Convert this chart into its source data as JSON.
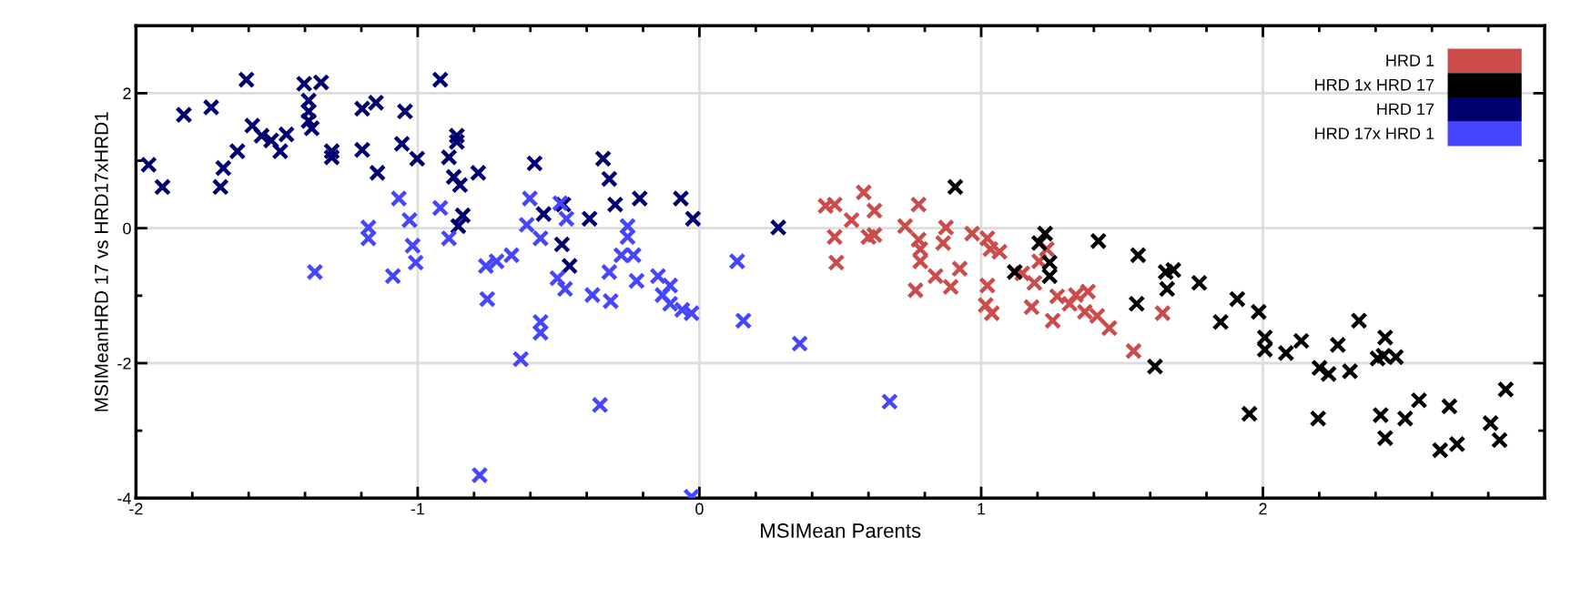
{
  "chart_data": {
    "type": "scatter",
    "xlabel": "MSIMean Parents",
    "ylabel": "MSIMeanHRD 17 vs HRD17xHRD1",
    "xlim": [
      -2,
      3
    ],
    "ylim": [
      -4,
      3
    ],
    "xticks": [
      -2,
      {
        "value": -1.8,
        "label": null
      },
      {
        "value": -1.6,
        "label": null
      },
      {
        "value": -1.4,
        "label": null
      },
      {
        "value": -1.2,
        "label": null
      },
      -1,
      {
        "value": -0.8,
        "label": null
      },
      {
        "value": -0.6,
        "label": null
      },
      {
        "value": -0.4,
        "label": null
      },
      {
        "value": -0.2,
        "label": null
      },
      0,
      {
        "value": 0.2,
        "label": null
      },
      {
        "value": 0.4,
        "label": null
      },
      {
        "value": 0.6,
        "label": null
      },
      {
        "value": 0.8,
        "label": null
      },
      1,
      {
        "value": 1.2,
        "label": null
      },
      {
        "value": 1.4,
        "label": null
      },
      {
        "value": 1.6,
        "label": null
      },
      {
        "value": 1.8,
        "label": null
      },
      2,
      {
        "value": 2.2,
        "label": null
      },
      {
        "value": 2.4,
        "label": null
      },
      {
        "value": 2.6,
        "label": null
      },
      {
        "value": 2.8,
        "label": null
      }
    ],
    "yticks": [
      -4,
      {
        "value": -3,
        "label": null
      },
      -2,
      {
        "value": -1,
        "label": null
      },
      0,
      {
        "value": 1,
        "label": null
      },
      2
    ],
    "grid": true,
    "legend": "top right",
    "marker": "cross",
    "series": [
      {
        "name": "HRD 1",
        "color": "#cc4b4b",
        "x": [
          0.448,
          0.48,
          0.54,
          0.583,
          0.48,
          0.486,
          0.6,
          0.621,
          0.621,
          0.778,
          0.73,
          0.778,
          0.784,
          0.784,
          0.875,
          0.865,
          0.767,
          0.838,
          0.892,
          0.924,
          0.968,
          1.022,
          1.033,
          1.065,
          1.022,
          1.016,
          1.038,
          1.146,
          1.189,
          1.233,
          1.206,
          1.179,
          1.254,
          1.27,
          1.336,
          1.379,
          1.368,
          1.412,
          1.455,
          1.541,
          1.644,
          1.314
        ],
        "values": [
          0.33,
          0.35,
          0.12,
          0.53,
          -0.13,
          -0.51,
          -0.13,
          0.26,
          -0.1,
          0.35,
          0.03,
          -0.17,
          -0.31,
          -0.49,
          0.01,
          -0.22,
          -0.92,
          -0.71,
          -0.87,
          -0.6,
          -0.08,
          -0.15,
          -0.31,
          -0.35,
          -0.85,
          -1.14,
          -1.26,
          -0.67,
          -0.81,
          -0.31,
          -0.49,
          -1.17,
          -1.37,
          -1.01,
          -0.99,
          -0.94,
          -1.24,
          -1.3,
          -1.48,
          -1.82,
          -1.26,
          -1.12
        ]
      },
      {
        "name": "HRD 1x HRD 17",
        "color": "#000000",
        "x": [
          0.908,
          1.227,
          1.206,
          1.119,
          1.243,
          1.243,
          1.416,
          1.557,
          1.552,
          1.655,
          1.682,
          1.66,
          1.774,
          1.617,
          1.85,
          1.909,
          1.985,
          2.007,
          2.007,
          2.082,
          2.136,
          1.952,
          2.201,
          2.233,
          2.266,
          2.309,
          2.341,
          2.434,
          2.428,
          2.472,
          2.407,
          2.196,
          2.418,
          2.434,
          2.505,
          2.554,
          2.662,
          2.629,
          2.689,
          2.808,
          2.84,
          2.862
        ],
        "values": [
          0.61,
          -0.08,
          -0.22,
          -0.65,
          -0.51,
          -0.71,
          -0.19,
          -0.4,
          -1.12,
          -0.65,
          -0.62,
          -0.9,
          -0.81,
          -2.05,
          -1.39,
          -1.05,
          -1.24,
          -1.62,
          -1.8,
          -1.85,
          -1.67,
          -2.75,
          -2.07,
          -2.16,
          -1.73,
          -2.12,
          -1.37,
          -1.62,
          -1.89,
          -1.91,
          -1.93,
          -2.82,
          -2.77,
          -3.11,
          -2.82,
          -2.55,
          -2.64,
          -3.29,
          -3.2,
          -2.89,
          -3.14,
          -2.39
        ]
      },
      {
        "name": "HRD 17",
        "color": "#000070",
        "x": [
          -1.955,
          -1.906,
          -1.83,
          -1.733,
          -1.608,
          -1.587,
          -1.64,
          -1.69,
          -1.7,
          -1.554,
          -1.52,
          -1.488,
          -1.466,
          -1.403,
          -1.343,
          -1.387,
          -1.387,
          -1.387,
          -1.376,
          -1.305,
          -1.305,
          -1.197,
          -1.148,
          -1.197,
          -1.143,
          -1.045,
          -1.056,
          -1.002,
          -0.92,
          -0.861,
          -0.861,
          -0.889,
          -0.872,
          -0.85,
          -0.785,
          -0.84,
          -0.856,
          -0.585,
          -0.553,
          -0.483,
          -0.488,
          -0.461,
          -0.39,
          -0.342,
          -0.32,
          -0.299,
          -0.212,
          -0.066,
          -0.023,
          0.28
        ],
        "values": [
          0.94,
          0.61,
          1.68,
          1.79,
          2.2,
          1.52,
          1.14,
          0.89,
          0.61,
          1.37,
          1.3,
          1.14,
          1.39,
          2.14,
          2.16,
          1.89,
          1.73,
          1.59,
          1.48,
          1.14,
          1.05,
          1.77,
          1.86,
          1.16,
          0.82,
          1.73,
          1.25,
          1.03,
          2.2,
          1.37,
          1.28,
          1.05,
          0.76,
          0.64,
          0.82,
          0.19,
          0.03,
          0.96,
          0.21,
          0.35,
          -0.24,
          -0.56,
          0.14,
          1.03,
          0.73,
          0.35,
          0.44,
          0.44,
          0.14,
          0.01
        ]
      },
      {
        "name": "HRD 17x HRD 1",
        "color": "#4646ff",
        "x": [
          -1.067,
          -1.029,
          -1.175,
          -1.175,
          -1.018,
          -1.007,
          -1.088,
          -1.365,
          -0.92,
          -0.889,
          -0.758,
          -0.753,
          -0.78,
          -0.602,
          -0.613,
          -0.564,
          -0.494,
          -0.472,
          -0.667,
          -0.72,
          -0.504,
          -0.477,
          -0.564,
          -0.564,
          -0.634,
          -0.353,
          -0.38,
          -0.315,
          -0.32,
          -0.255,
          -0.255,
          -0.277,
          -0.234,
          -0.223,
          -0.147,
          -0.104,
          -0.131,
          -0.104,
          -0.061,
          -0.028,
          0.134,
          0.156,
          0.356,
          -0.028,
          0.675
        ],
        "values": [
          0.44,
          0.12,
          0.01,
          -0.15,
          -0.26,
          -0.51,
          -0.71,
          -0.65,
          0.3,
          -0.15,
          -0.56,
          -1.05,
          -3.66,
          0.44,
          0.05,
          -0.15,
          0.37,
          0.14,
          -0.4,
          -0.49,
          -0.74,
          -0.9,
          -1.39,
          -1.55,
          -1.94,
          -2.62,
          -0.99,
          -1.08,
          -0.65,
          0.03,
          -0.13,
          -0.4,
          -0.4,
          -0.78,
          -0.71,
          -0.85,
          -0.99,
          -1.12,
          -1.21,
          -1.26,
          -0.49,
          -1.37,
          -1.71,
          -3.98,
          -2.57
        ]
      }
    ]
  }
}
